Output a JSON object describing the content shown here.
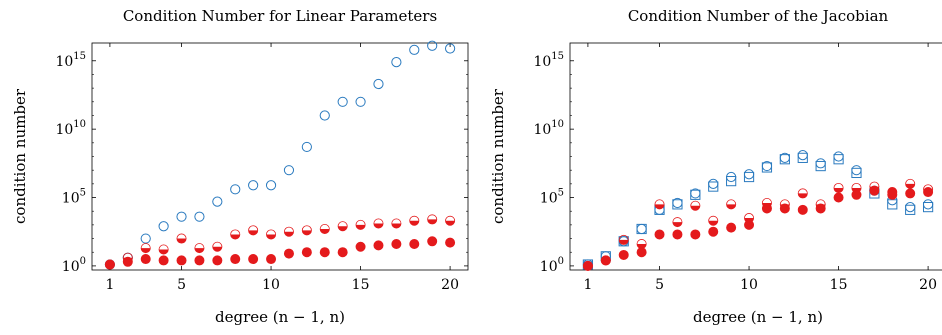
{
  "chart_data": [
    {
      "type": "scatter",
      "title": "Condition Number for Linear Parameters",
      "xlabel": "degree (n − 1, n)",
      "ylabel": "condition number",
      "yscale": "log",
      "xlim": [
        0,
        21
      ],
      "ylim_exp": [
        -0.3,
        16.3
      ],
      "xticks": [
        1,
        5,
        10,
        15,
        20
      ],
      "xtick_labels": [
        "1",
        "5",
        "10",
        "15",
        "20"
      ],
      "yticks_exp": [
        0,
        5,
        10,
        15
      ],
      "ytick_bases": [
        "10",
        "10",
        "10",
        "10"
      ],
      "ytick_exps": [
        "0",
        "5",
        "10",
        "15"
      ],
      "series": [
        {
          "marker": "open-circle",
          "color": "#2a7abf",
          "x": [
            1,
            2,
            3,
            4,
            5,
            6,
            7,
            8,
            9,
            10,
            11,
            12,
            13,
            14,
            15,
            16,
            17,
            18,
            19,
            20
          ],
          "y_exp": [
            0.1,
            0.6,
            2.0,
            2.9,
            3.6,
            3.6,
            4.7,
            5.6,
            5.9,
            5.9,
            7.0,
            8.7,
            11.0,
            12.0,
            12.0,
            13.3,
            14.9,
            15.8,
            16.1,
            15.9
          ]
        },
        {
          "marker": "half-circle",
          "color": "#e41a1c",
          "x": [
            1,
            2,
            3,
            4,
            5,
            6,
            7,
            8,
            9,
            10,
            11,
            12,
            13,
            14,
            15,
            16,
            17,
            18,
            19,
            20
          ],
          "y_exp": [
            0.1,
            0.6,
            1.3,
            1.2,
            2.0,
            1.3,
            1.4,
            2.3,
            2.6,
            2.3,
            2.5,
            2.6,
            2.7,
            2.9,
            3.0,
            3.1,
            3.1,
            3.3,
            3.4,
            3.3
          ]
        },
        {
          "marker": "filled-circle",
          "color": "#e41a1c",
          "x": [
            1,
            2,
            3,
            4,
            5,
            6,
            7,
            8,
            9,
            10,
            11,
            12,
            13,
            14,
            15,
            16,
            17,
            18,
            19,
            20
          ],
          "y_exp": [
            0.1,
            0.3,
            0.5,
            0.4,
            0.4,
            0.4,
            0.4,
            0.5,
            0.5,
            0.5,
            0.9,
            1.0,
            1.0,
            1.0,
            1.4,
            1.5,
            1.6,
            1.6,
            1.8,
            1.7
          ]
        }
      ]
    },
    {
      "type": "scatter",
      "title": "Condition Number of the Jacobian",
      "xlabel": "degree (n − 1, n)",
      "ylabel": "condition number",
      "yscale": "log",
      "xlim": [
        0,
        21
      ],
      "ylim_exp": [
        -0.3,
        16.3
      ],
      "xticks": [
        1,
        5,
        10,
        15,
        20
      ],
      "xtick_labels": [
        "1",
        "5",
        "10",
        "15",
        "20"
      ],
      "yticks_exp": [
        0,
        5,
        10,
        15
      ],
      "ytick_bases": [
        "10",
        "10",
        "10",
        "10"
      ],
      "ytick_exps": [
        "0",
        "5",
        "10",
        "15"
      ],
      "series": [
        {
          "marker": "open-square",
          "color": "#2a7abf",
          "x": [
            1,
            2,
            3,
            4,
            5,
            6,
            7,
            8,
            9,
            10,
            11,
            12,
            13,
            14,
            15,
            16,
            17,
            18,
            19,
            20
          ],
          "y_exp": [
            0.1,
            0.7,
            1.8,
            2.7,
            4.1,
            4.5,
            5.2,
            5.8,
            6.2,
            6.5,
            7.2,
            7.8,
            7.9,
            7.3,
            7.8,
            6.8,
            5.3,
            4.5,
            4.1,
            4.3
          ]
        },
        {
          "marker": "open-circle",
          "color": "#2a7abf",
          "x": [
            1,
            2,
            3,
            4,
            5,
            6,
            7,
            8,
            9,
            10,
            11,
            12,
            13,
            14,
            15,
            16,
            17,
            18,
            19,
            20
          ],
          "y_exp": [
            0.1,
            0.7,
            1.8,
            2.7,
            4.1,
            4.6,
            5.3,
            6.0,
            6.5,
            6.7,
            7.3,
            7.9,
            8.1,
            7.5,
            8.0,
            7.0,
            5.5,
            4.8,
            4.3,
            4.5
          ]
        },
        {
          "marker": "half-circle",
          "color": "#e41a1c",
          "x": [
            1,
            2,
            3,
            4,
            5,
            6,
            7,
            8,
            9,
            10,
            11,
            12,
            13,
            14,
            15,
            16,
            17,
            18,
            19,
            20
          ],
          "y_exp": [
            0.0,
            0.4,
            1.9,
            1.6,
            4.5,
            3.2,
            4.4,
            3.3,
            4.5,
            3.5,
            4.6,
            4.5,
            5.3,
            4.5,
            5.7,
            5.7,
            5.8,
            5.2,
            6.0,
            5.6
          ]
        },
        {
          "marker": "filled-circle",
          "color": "#e41a1c",
          "x": [
            1,
            2,
            3,
            4,
            5,
            6,
            7,
            8,
            9,
            10,
            11,
            12,
            13,
            14,
            15,
            16,
            17,
            18,
            19,
            20
          ],
          "y_exp": [
            0.0,
            0.4,
            0.8,
            1.0,
            2.3,
            2.3,
            2.3,
            2.5,
            2.8,
            3.0,
            4.2,
            4.2,
            4.1,
            4.2,
            5.0,
            5.2,
            5.5,
            5.4,
            5.3,
            5.4
          ]
        }
      ]
    }
  ]
}
